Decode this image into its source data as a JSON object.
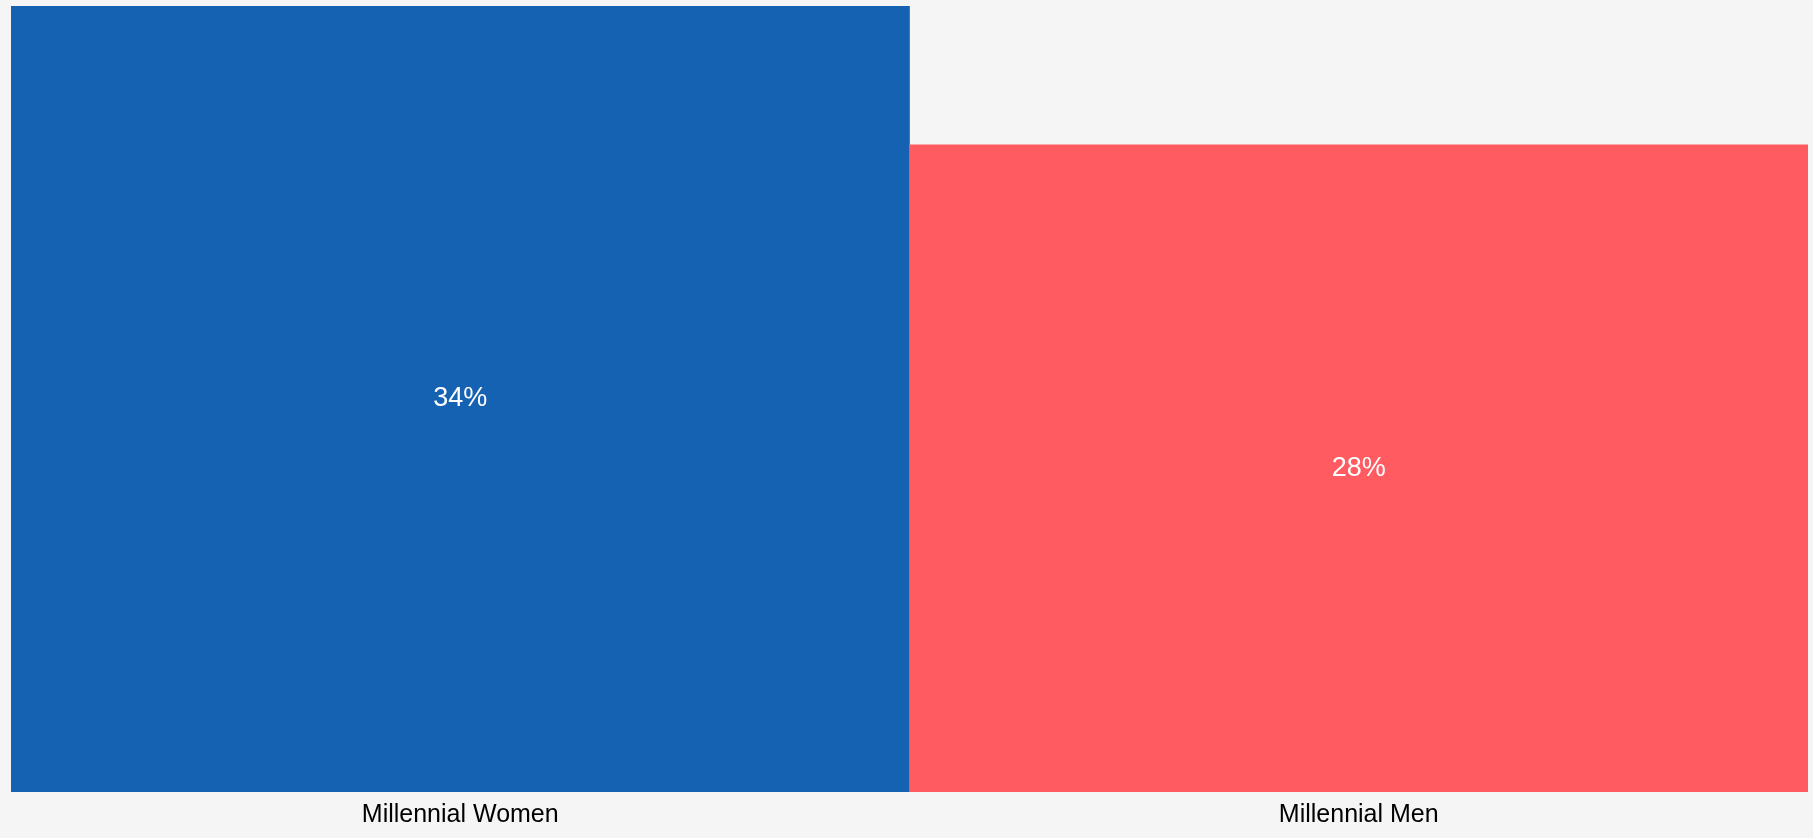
{
  "chart_data": {
    "type": "bar",
    "categories": [
      "Millennial Women",
      "Millennial Men"
    ],
    "values": [
      34,
      28
    ],
    "colors": [
      "#1562b3",
      "#ff5b61"
    ],
    "value_labels": [
      "34%",
      "28%"
    ],
    "ylim": [
      0,
      34
    ],
    "grid": false,
    "legend": false,
    "tick_labels": "x"
  }
}
